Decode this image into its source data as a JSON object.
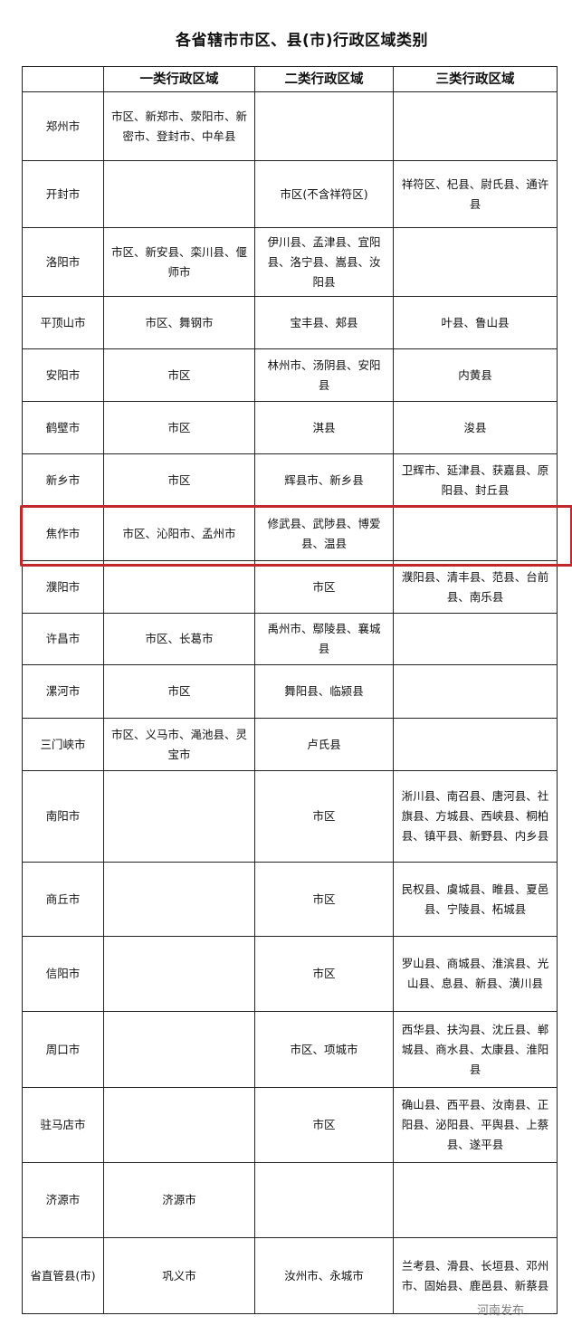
{
  "title": "各省辖市市区、县(市)行政区域类别",
  "headers": [
    "",
    "一类行政区域",
    "二类行政区域",
    "三类行政区域"
  ],
  "rows": [
    {
      "city": "郑州市",
      "class1": "市区、新郑市、荥阳市、新密市、登封市、中牟县",
      "class2": "",
      "class3": ""
    },
    {
      "city": "开封市",
      "class1": "",
      "class2": "市区(不含祥符区)",
      "class3": "祥符区、杞县、尉氏县、通许县"
    },
    {
      "city": "洛阳市",
      "class1": "市区、新安县、栾川县、偃师市",
      "class2": "伊川县、孟津县、宜阳县、洛宁县、嵩县、汝阳县",
      "class3": ""
    },
    {
      "city": "平顶山市",
      "class1": "市区、舞钢市",
      "class2": "宝丰县、郏县",
      "class3": "叶县、鲁山县"
    },
    {
      "city": "安阳市",
      "class1": "市区",
      "class2": "林州市、汤阴县、安阳县",
      "class3": "内黄县"
    },
    {
      "city": "鹤壁市",
      "class1": "市区",
      "class2": "淇县",
      "class3": "浚县"
    },
    {
      "city": "新乡市",
      "class1": "市区",
      "class2": "辉县市、新乡县",
      "class3": "卫辉市、延津县、获嘉县、原阳县、封丘县"
    },
    {
      "city": "焦作市",
      "class1": "市区、沁阳市、孟州市",
      "class2": "修武县、武陟县、博爱县、温县",
      "class3": ""
    },
    {
      "city": "濮阳市",
      "class1": "",
      "class2": "市区",
      "class3": "濮阳县、清丰县、范县、台前县、南乐县"
    },
    {
      "city": "许昌市",
      "class1": "市区、长葛市",
      "class2": "禹州市、鄢陵县、襄城县",
      "class3": ""
    },
    {
      "city": "漯河市",
      "class1": "市区",
      "class2": "舞阳县、临颍县",
      "class3": ""
    },
    {
      "city": "三门峡市",
      "class1": "市区、义马市、渑池县、灵宝市",
      "class2": "卢氏县",
      "class3": ""
    },
    {
      "city": "南阳市",
      "class1": "",
      "class2": "市区",
      "class3": "淅川县、南召县、唐河县、社旗县、方城县、西峡县、桐柏县、镇平县、新野县、内乡县"
    },
    {
      "city": "商丘市",
      "class1": "",
      "class2": "市区",
      "class3": "民权县、虞城县、睢县、夏邑县、宁陵县、柘城县"
    },
    {
      "city": "信阳市",
      "class1": "",
      "class2": "市区",
      "class3": "罗山县、商城县、淮滨县、光山县、息县、新县、潢川县"
    },
    {
      "city": "周口市",
      "class1": "",
      "class2": "市区、项城市",
      "class3": "西华县、扶沟县、沈丘县、郸城县、商水县、太康县、淮阳县"
    },
    {
      "city": "驻马店市",
      "class1": "",
      "class2": "市区",
      "class3": "确山县、西平县、汝南县、正阳县、泌阳县、平舆县、上蔡县、遂平县"
    },
    {
      "city": "济源市",
      "class1": "济源市",
      "class2": "",
      "class3": ""
    },
    {
      "city": "省直管县(市)",
      "class1": "巩义市",
      "class2": "汝州市、永城市",
      "class3": "兰考县、滑县、长垣县、邓州市、固始县、鹿邑县、新蔡县"
    }
  ],
  "highlight_color": "#c0282a",
  "watermark": "河南发布"
}
